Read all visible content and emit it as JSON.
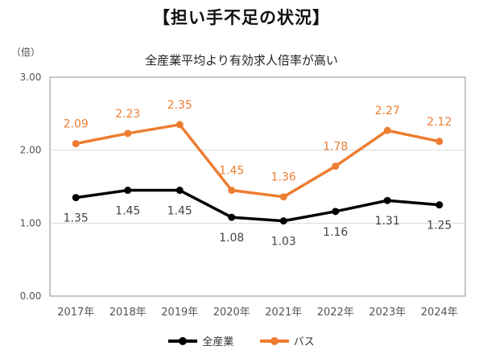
{
  "header": {
    "title": "【担い手不足の状況】",
    "unit": "（倍）",
    "subtitle": "全産業平均より有効求人倍率が高い"
  },
  "chart_data": {
    "type": "line",
    "categories": [
      "2017年",
      "2018年",
      "2019年",
      "2020年",
      "2021年",
      "2022年",
      "2023年",
      "2024年"
    ],
    "series": [
      {
        "name": "全産業",
        "color": "#000000",
        "values": [
          1.35,
          1.45,
          1.45,
          1.08,
          1.03,
          1.16,
          1.31,
          1.25
        ],
        "value_labels": [
          "1.35",
          "1.45",
          "1.45",
          "1.08",
          "1.03",
          "1.16",
          "1.31",
          "1.25"
        ]
      },
      {
        "name": "バス",
        "color": "#ED7D31",
        "values": [
          2.09,
          2.23,
          2.35,
          1.45,
          1.36,
          1.78,
          2.27,
          2.12
        ],
        "value_labels": [
          "2.09",
          "2.23",
          "2.35",
          "1.45",
          "1.36",
          "1.78",
          "2.27",
          "2.12"
        ]
      }
    ],
    "ylim": [
      0,
      3
    ],
    "yticks": [
      "0.00",
      "1.00",
      "2.00",
      "3.00"
    ],
    "ytick_values": [
      0,
      1,
      2,
      3
    ],
    "grid": true,
    "legend": "bottom"
  }
}
